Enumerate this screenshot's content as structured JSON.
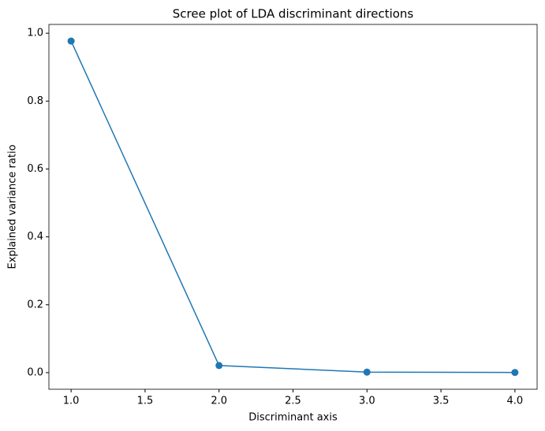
{
  "chart_data": {
    "type": "line",
    "title": "Scree plot of LDA discriminant directions",
    "x_label": "Discriminant axis",
    "y_label": "Explained variance ratio",
    "x": [
      1,
      2,
      3,
      4
    ],
    "values": [
      0.977,
      0.021,
      0.0015,
      0.0005
    ],
    "color": "#1f77b4",
    "markers": true,
    "xlim": [
      0.85,
      4.15
    ],
    "ylim": [
      -0.0489,
      1.0259
    ],
    "xticks": [
      {
        "value": 1,
        "label": "1.0"
      },
      1.5,
      {
        "value": 2,
        "label": "2.0"
      },
      2.5,
      {
        "value": 3,
        "label": "3.0"
      },
      3.5,
      {
        "value": 4,
        "label": "4.0"
      }
    ],
    "yticks": [
      {
        "value": 0,
        "label": "0.0"
      },
      0.2,
      0.4,
      0.6,
      0.8,
      {
        "value": 1,
        "label": "1.0"
      }
    ],
    "grid": false
  }
}
